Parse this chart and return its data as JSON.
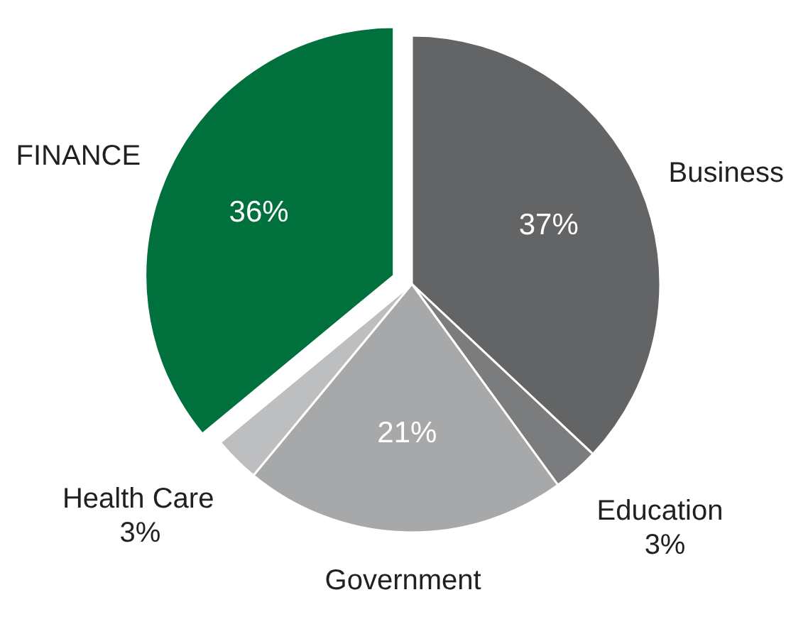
{
  "chart_data": {
    "type": "pie",
    "categories": [
      "Business",
      "Education",
      "Government",
      "Health Care",
      "FINANCE"
    ],
    "values": [
      37,
      3,
      21,
      3,
      36
    ],
    "colors": [
      "#636466",
      "#7b7c7e",
      "#a7a8aa",
      "#bdbec0",
      "#00703c"
    ],
    "value_labels": [
      "37%",
      "3%",
      "21%",
      "3%",
      "36%"
    ]
  }
}
